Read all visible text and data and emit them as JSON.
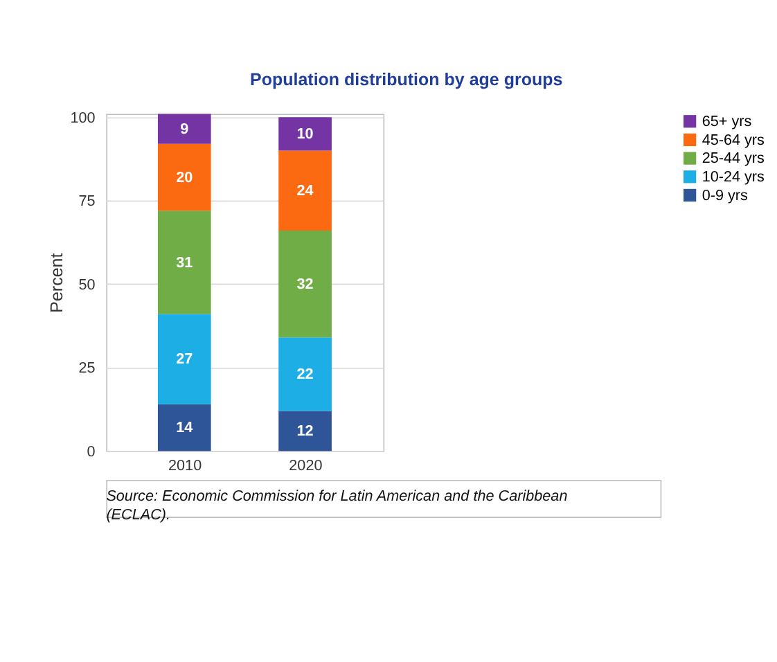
{
  "chart_data": {
    "type": "bar",
    "title": "Population distribution by age groups",
    "ylabel": "Percent",
    "categories": [
      "2010",
      "2020"
    ],
    "stacked": true,
    "data_labels": true,
    "ylim": [
      0,
      101
    ],
    "yticks": [
      0,
      25,
      50,
      75,
      100
    ],
    "grid": "y",
    "legend": "right",
    "series": [
      {
        "name": "0-9 yrs",
        "color": "#2e5597",
        "values": [
          14,
          12
        ]
      },
      {
        "name": "10-24 yrs",
        "color": "#1eaee6",
        "values": [
          27,
          22
        ]
      },
      {
        "name": "25-44 yrs",
        "color": "#70ad47",
        "values": [
          31,
          32
        ]
      },
      {
        "name": "45-64 yrs",
        "color": "#fb6a10",
        "values": [
          20,
          24
        ]
      },
      {
        "name": "65+ yrs",
        "color": "#7434a3",
        "values": [
          9,
          10
        ]
      }
    ],
    "annotations": [
      "Source: Economic Commission for Latin American and the Caribbean (ECLAC)."
    ]
  }
}
